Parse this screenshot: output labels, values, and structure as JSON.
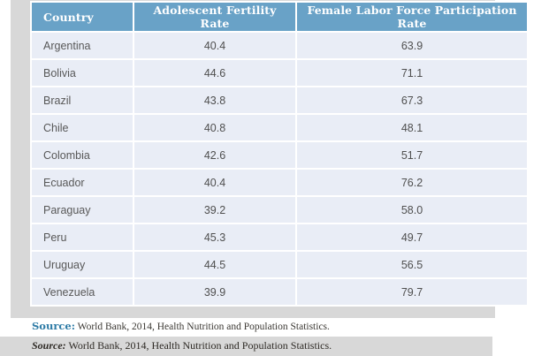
{
  "chart_data": {
    "type": "table",
    "columns": [
      "Country",
      "Adolescent Fertility Rate",
      "Female Labor Force Participation Rate"
    ],
    "rows": [
      [
        "Argentina",
        "40.4",
        "63.9"
      ],
      [
        "Bolivia",
        "44.6",
        "71.1"
      ],
      [
        "Brazil",
        "43.8",
        "67.3"
      ],
      [
        "Chile",
        "40.8",
        "48.1"
      ],
      [
        "Colombia",
        "42.6",
        "51.7"
      ],
      [
        "Ecuador",
        "40.4",
        "76.2"
      ],
      [
        "Paraguay",
        "39.2",
        "58.0"
      ],
      [
        "Peru",
        "45.3",
        "49.7"
      ],
      [
        "Uruguay",
        "44.5",
        "56.5"
      ],
      [
        "Venezuela",
        "39.9",
        "79.7"
      ]
    ]
  },
  "sources": {
    "line1": {
      "label": "Source:",
      "text": " World Bank, 2014, Health Nutrition and Population Statistics."
    },
    "line2": {
      "label": "Source:",
      "text": " World Bank, 2014, Health Nutrition and Population Statistics."
    }
  },
  "colors": {
    "header_bg": "#69a2c7",
    "header_text": "#ffffff",
    "row_bg": "#e9edf6",
    "row_text": "#4f4f4f",
    "backdrop_gray": "#d8d8d8",
    "source_label_blue": "#2d7ba6"
  }
}
